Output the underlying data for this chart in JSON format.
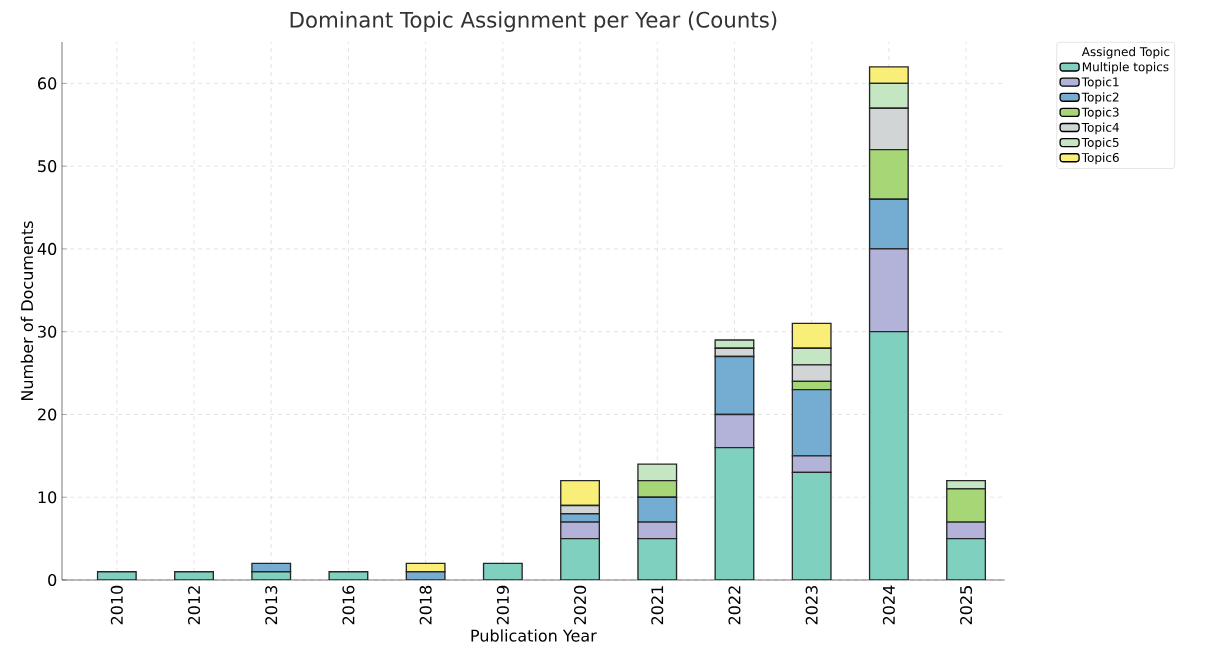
{
  "chart_data": {
    "type": "bar",
    "title": "Dominant Topic Assignment per Year (Counts)",
    "xlabel": "Publication Year",
    "ylabel": "Number of Documents",
    "legend_title": "Assigned Topic",
    "categories": [
      "2010",
      "2012",
      "2013",
      "2016",
      "2018",
      "2019",
      "2020",
      "2021",
      "2022",
      "2023",
      "2024",
      "2025"
    ],
    "stacked": true,
    "series": [
      {
        "name": "Multiple topics",
        "color": "#80d0c0",
        "values": [
          1,
          1,
          1,
          1,
          0,
          2,
          5,
          5,
          16,
          13,
          30,
          5
        ]
      },
      {
        "name": "Topic1",
        "color": "#b3b3d9",
        "values": [
          0,
          0,
          0,
          0,
          0,
          0,
          2,
          2,
          4,
          2,
          10,
          2
        ]
      },
      {
        "name": "Topic2",
        "color": "#74add1",
        "values": [
          0,
          0,
          1,
          0,
          1,
          0,
          1,
          3,
          7,
          8,
          6,
          0
        ]
      },
      {
        "name": "Topic3",
        "color": "#a6d675",
        "values": [
          0,
          0,
          0,
          0,
          0,
          0,
          0,
          2,
          0,
          1,
          6,
          4
        ]
      },
      {
        "name": "Topic4",
        "color": "#d1d5d6",
        "values": [
          0,
          0,
          0,
          0,
          0,
          0,
          1,
          0,
          1,
          2,
          5,
          0
        ]
      },
      {
        "name": "Topic5",
        "color": "#c4e6c3",
        "values": [
          0,
          0,
          0,
          0,
          0,
          0,
          0,
          2,
          1,
          2,
          3,
          1
        ]
      },
      {
        "name": "Topic6",
        "color": "#f9ef78",
        "values": [
          0,
          0,
          0,
          0,
          1,
          0,
          3,
          0,
          0,
          3,
          2,
          0
        ]
      }
    ],
    "ylim": [
      0,
      65
    ],
    "yticks": [
      0,
      10,
      20,
      30,
      40,
      50,
      60
    ],
    "grid": true,
    "legend": "top right"
  }
}
